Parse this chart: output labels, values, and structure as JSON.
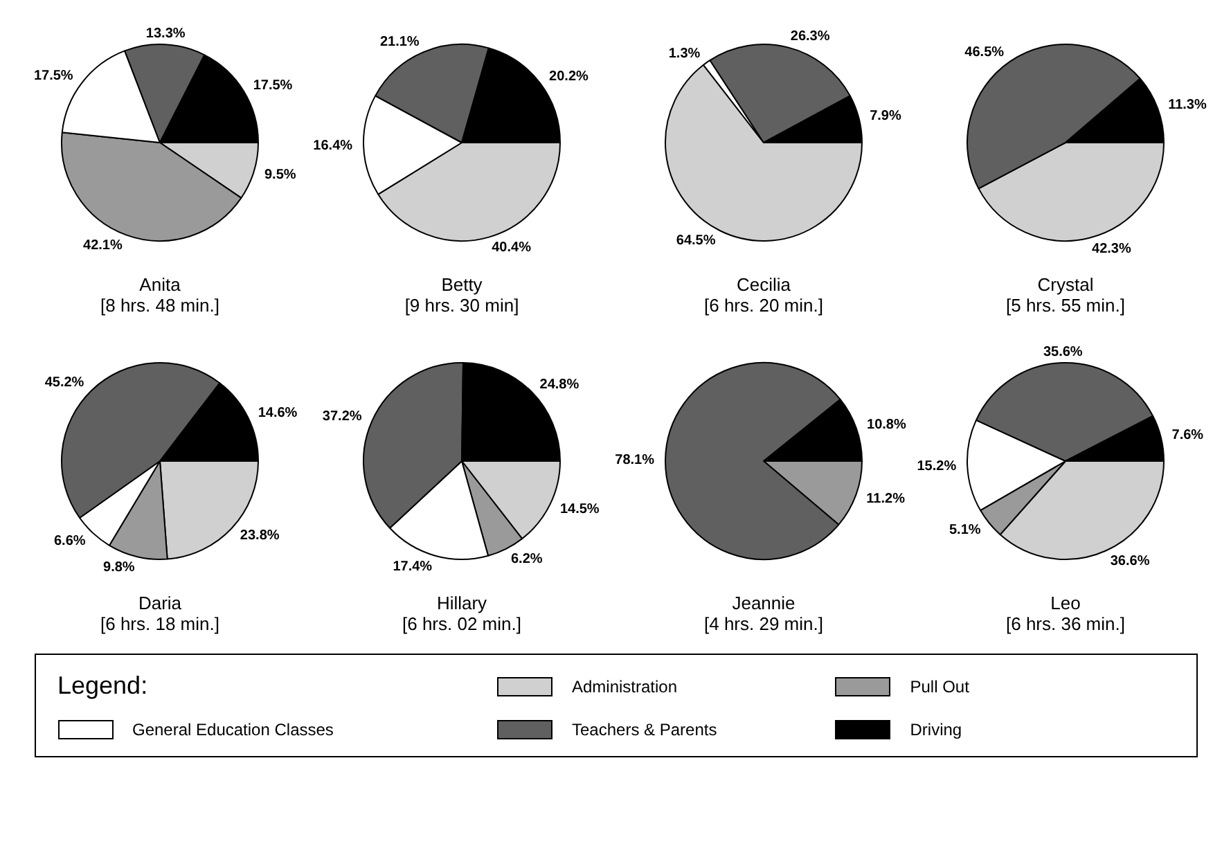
{
  "chart_data": [
    {
      "type": "pie",
      "title": "Anita",
      "subtitle": "[8 hrs. 48 min.]",
      "legend": "bottom",
      "legend_title": "Legend:",
      "categories": [
        "Administration",
        "Pull Out",
        "General Education Classes",
        "Teachers & Parents",
        "Driving"
      ],
      "values": [
        9.5,
        42.1,
        17.5,
        13.3,
        17.5
      ],
      "value_labels": [
        "9.5%",
        "42.1%",
        "17.5%",
        "13.3%",
        "17.5%"
      ],
      "colors": [
        "#d0d0d0",
        "#9a9a9a",
        "#ffffff",
        "#606060",
        "#000000"
      ]
    },
    {
      "type": "pie",
      "title": "Betty",
      "subtitle": "[9 hrs. 30 min]",
      "categories": [
        null,
        null,
        null,
        null,
        null
      ],
      "values": [
        40.4,
        null,
        16.4,
        21.1,
        20.2
      ],
      "value_labels": [
        "40.4%",
        null,
        "16.4%",
        "21.1%",
        "20.2%"
      ],
      "colors": [
        "#d0d0d0",
        "#9a9a9a",
        "#ffffff",
        "#606060",
        "#000000"
      ]
    },
    {
      "type": "pie",
      "title": "Cecilia",
      "subtitle": "[6 hrs. 20 min.]",
      "categories": [
        null,
        null,
        null,
        null,
        null
      ],
      "values": [
        64.5,
        null,
        1.3,
        26.3,
        7.9
      ],
      "value_labels": [
        "64.5%",
        null,
        "1.3%",
        "26.3%",
        "7.9%"
      ],
      "colors": [
        "#d0d0d0",
        "#9a9a9a",
        "#ffffff",
        "#606060",
        "#000000"
      ]
    },
    {
      "type": "pie",
      "title": "Crystal",
      "subtitle": "[5 hrs. 55 min.]",
      "categories": [
        null,
        null,
        null,
        null,
        null
      ],
      "values": [
        42.3,
        null,
        null,
        46.5,
        11.3
      ],
      "value_labels": [
        "42.3%",
        null,
        null,
        "46.5%",
        "11.3%"
      ],
      "colors": [
        "#d0d0d0",
        "#9a9a9a",
        "#ffffff",
        "#606060",
        "#000000"
      ]
    },
    {
      "type": "pie",
      "title": "Daria",
      "subtitle": "[6 hrs. 18 min.]",
      "categories": [
        null,
        null,
        null,
        null,
        null
      ],
      "values": [
        23.8,
        9.8,
        6.6,
        45.2,
        14.6
      ],
      "value_labels": [
        "23.8%",
        "9.8%",
        "6.6%",
        "45.2%",
        "14.6%"
      ],
      "colors": [
        "#d0d0d0",
        "#9a9a9a",
        "#ffffff",
        "#606060",
        "#000000"
      ]
    },
    {
      "type": "pie",
      "title": "Hillary",
      "subtitle": "[6 hrs. 02 min.]",
      "categories": [
        null,
        null,
        null,
        null,
        null
      ],
      "values": [
        14.5,
        6.2,
        17.4,
        37.2,
        24.8
      ],
      "value_labels": [
        "14.5%",
        "6.2%",
        "17.4%",
        "37.2%",
        "24.8%"
      ],
      "colors": [
        "#d0d0d0",
        "#9a9a9a",
        "#ffffff",
        "#606060",
        "#000000"
      ]
    },
    {
      "type": "pie",
      "title": "Jeannie",
      "subtitle": "[4 hrs. 29 min.]",
      "categories": [
        null,
        null,
        null,
        null,
        null
      ],
      "values": [
        null,
        11.2,
        null,
        78.1,
        10.8
      ],
      "value_labels": [
        null,
        "11.2%",
        null,
        "78.1%",
        "10.8%"
      ],
      "colors": [
        "#d0d0d0",
        "#9a9a9a",
        "#ffffff",
        "#606060",
        "#000000"
      ]
    },
    {
      "type": "pie",
      "title": "Leo",
      "subtitle": "[6 hrs. 36 min.]",
      "categories": [
        null,
        null,
        null,
        null,
        null
      ],
      "values": [
        36.6,
        5.1,
        15.2,
        35.6,
        7.6
      ],
      "value_labels": [
        "36.6%",
        "5.1%",
        "15.2%",
        "35.6%",
        "7.6%"
      ],
      "colors": [
        "#d0d0d0",
        "#9a9a9a",
        "#ffffff",
        "#606060",
        "#000000"
      ]
    }
  ]
}
